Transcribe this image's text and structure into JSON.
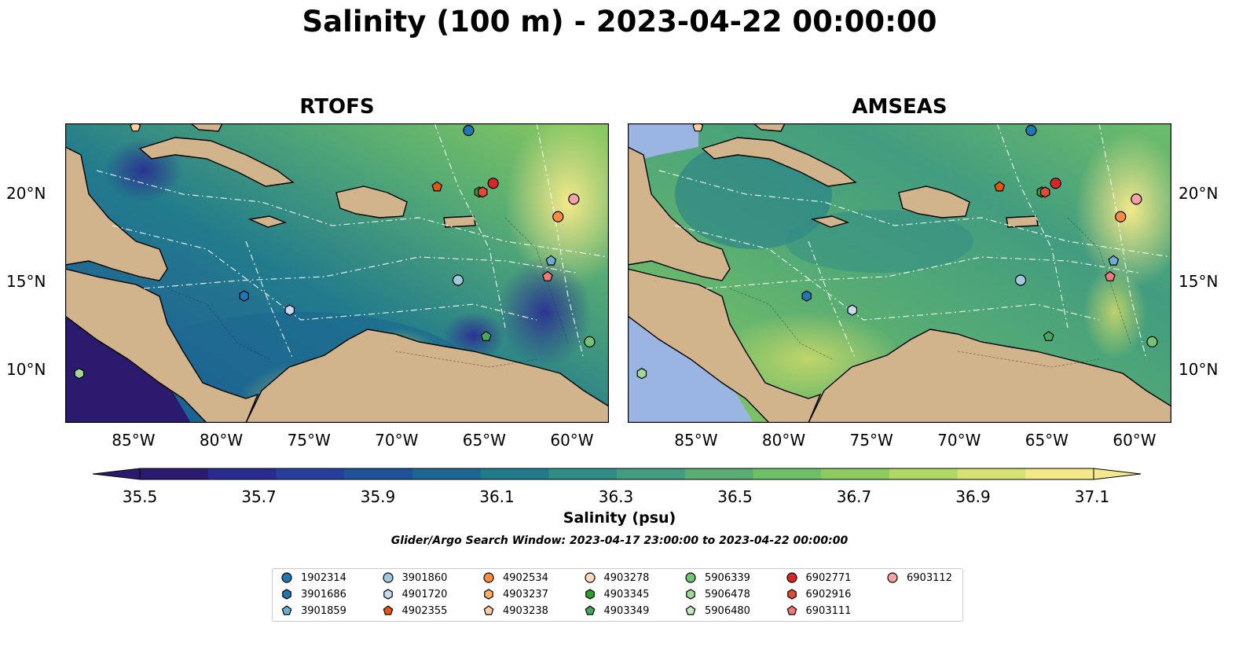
{
  "title": "Salinity (100 m) - 2023-04-22 00:00:00",
  "panels": [
    {
      "title": "RTOFS"
    },
    {
      "title": "AMSEAS"
    }
  ],
  "x_ticks": [
    "85°W",
    "80°W",
    "75°W",
    "70°W",
    "65°W",
    "60°W"
  ],
  "y_ticks": [
    "20°N",
    "15°N",
    "10°N"
  ],
  "colorbar": {
    "label": "Salinity (psu)",
    "ticks": [
      "35.5",
      "35.7",
      "35.9",
      "36.1",
      "36.3",
      "36.5",
      "36.7",
      "36.9",
      "37.1"
    ],
    "colors": [
      "#2b1a6e",
      "#2a2b92",
      "#263e9c",
      "#1f5299",
      "#1c6791",
      "#227b8c",
      "#2f8c86",
      "#429c7f",
      "#58ad73",
      "#6fbe6a",
      "#8ccb5e",
      "#b1d766",
      "#d6e272",
      "#f4e88a"
    ]
  },
  "search_window": "Glider/Argo Search Window: 2023-04-17 23:00:00 to 2023-04-22 00:00:00",
  "legend": [
    {
      "id": "1902314",
      "marker": "circle",
      "color": "#1f77b4"
    },
    {
      "id": "3901686",
      "marker": "hexagon",
      "color": "#1f77b4"
    },
    {
      "id": "3901859",
      "marker": "pentagon",
      "color": "#6baed6"
    },
    {
      "id": "3901860",
      "marker": "circle",
      "color": "#9ecae1"
    },
    {
      "id": "4901720",
      "marker": "hexagon",
      "color": "#c6dbef"
    },
    {
      "id": "4902355",
      "marker": "pentagon",
      "color": "#e6550d"
    },
    {
      "id": "4902534",
      "marker": "circle",
      "color": "#fd8d3c"
    },
    {
      "id": "4903237",
      "marker": "hexagon",
      "color": "#fdae6b"
    },
    {
      "id": "4903238",
      "marker": "pentagon",
      "color": "#fdd0a2"
    },
    {
      "id": "4903278",
      "marker": "circle",
      "color": "#fdd9bd"
    },
    {
      "id": "4903345",
      "marker": "hexagon",
      "color": "#2ca02c"
    },
    {
      "id": "4903349",
      "marker": "pentagon",
      "color": "#41ab5d"
    },
    {
      "id": "5906339",
      "marker": "circle",
      "color": "#74c476"
    },
    {
      "id": "5906478",
      "marker": "hexagon",
      "color": "#a1d99b"
    },
    {
      "id": "5906480",
      "marker": "pentagon",
      "color": "#c7e9c0"
    },
    {
      "id": "6902771",
      "marker": "circle",
      "color": "#d62728"
    },
    {
      "id": "6902916",
      "marker": "hexagon",
      "color": "#e34a33"
    },
    {
      "id": "6903111",
      "marker": "pentagon",
      "color": "#f07a7a"
    },
    {
      "id": "6903112",
      "marker": "circle",
      "color": "#f8a3a3"
    }
  ],
  "map": {
    "lon_range": [
      -89,
      -58
    ],
    "lat_range": [
      7,
      24
    ],
    "colors": {
      "land": "#d2b48c",
      "shallow": "#9ab5e2"
    },
    "floats": [
      {
        "id": "1902314",
        "lon": -66.0,
        "lat": 23.6
      },
      {
        "id": "3901686",
        "lon": -78.8,
        "lat": 14.2
      },
      {
        "id": "3901859",
        "lon": -61.3,
        "lat": 16.2
      },
      {
        "id": "3901860",
        "lon": -66.6,
        "lat": 15.1
      },
      {
        "id": "4901720",
        "lon": -76.2,
        "lat": 13.4
      },
      {
        "id": "4902355",
        "lon": -67.8,
        "lat": 20.4
      },
      {
        "id": "4902534",
        "lon": -60.9,
        "lat": 18.7
      },
      {
        "id": "4903238",
        "lon": -85.0,
        "lat": 23.8
      },
      {
        "id": "4903345",
        "lon": -65.4,
        "lat": 20.1
      },
      {
        "id": "4903349",
        "lon": -65.0,
        "lat": 11.9
      },
      {
        "id": "5906339",
        "lon": -59.1,
        "lat": 11.6
      },
      {
        "id": "5906478",
        "lon": -88.2,
        "lat": 9.8
      },
      {
        "id": "6902771",
        "lon": -64.6,
        "lat": 20.6
      },
      {
        "id": "6902916",
        "lon": -65.2,
        "lat": 20.1
      },
      {
        "id": "6903111",
        "lon": -61.5,
        "lat": 15.3
      },
      {
        "id": "6903112",
        "lon": -60.0,
        "lat": 19.7
      }
    ]
  }
}
